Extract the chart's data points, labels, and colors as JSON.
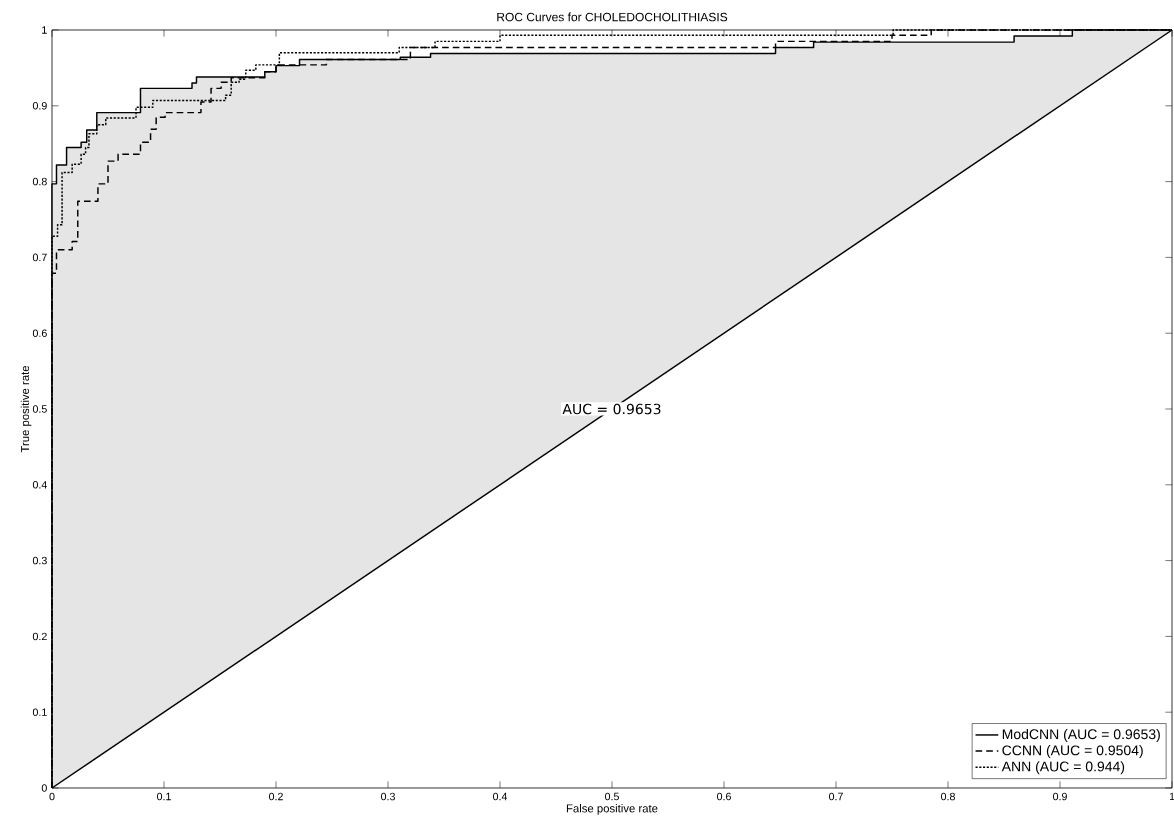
{
  "chart_data": {
    "type": "line",
    "title": "ROC Curves for CHOLEDOCHOLITHIASIS",
    "xlabel": "False positive rate",
    "ylabel": "True positive rate",
    "xlim": [
      0,
      1
    ],
    "ylim": [
      0,
      1
    ],
    "xticks": [
      0,
      0.1,
      0.2,
      0.3,
      0.4,
      0.5,
      0.6,
      0.7,
      0.8,
      0.9,
      1
    ],
    "yticks": [
      0,
      0.1,
      0.2,
      0.3,
      0.4,
      0.5,
      0.6,
      0.7,
      0.8,
      0.9,
      1
    ],
    "grid": false,
    "legend": "bottom right",
    "marker": "none",
    "annotations": [
      {
        "text": "AUC = 0.9653",
        "x": 0.5,
        "y": 0.5
      }
    ],
    "series": [
      {
        "name": "ModCNN (AUC = 0.9653)",
        "color": "#000000",
        "line_style": "solid",
        "x": [
          0,
          0,
          0.004,
          0.004,
          0.013,
          0.013,
          0.026,
          0.026,
          0.031,
          0.031,
          0.04,
          0.04,
          0.079,
          0.079,
          0.125,
          0.125,
          0.129,
          0.129,
          0.19,
          0.19,
          0.2,
          0.2,
          0.221,
          0.221,
          0.311,
          0.311,
          0.338,
          0.338,
          0.646,
          0.646,
          0.68,
          0.68,
          0.859,
          0.859,
          0.911,
          0.911,
          1
        ],
        "values": [
          0,
          0.797,
          0.797,
          0.822,
          0.822,
          0.845,
          0.845,
          0.852,
          0.852,
          0.868,
          0.868,
          0.891,
          0.891,
          0.923,
          0.923,
          0.93,
          0.93,
          0.938,
          0.938,
          0.945,
          0.945,
          0.953,
          0.953,
          0.961,
          0.961,
          0.964,
          0.964,
          0.969,
          0.969,
          0.977,
          0.977,
          0.984,
          0.984,
          0.992,
          0.992,
          1,
          1
        ],
        "lower": [
          0,
          0,
          0.004,
          0.004,
          0.013,
          0.013,
          0.026,
          0.026,
          0.031,
          0.031,
          0.04,
          0.04,
          0.079,
          0.079,
          0.125,
          0.125,
          0.129,
          0.129,
          0.19,
          0.19,
          0.2,
          0.2,
          0.221,
          0.221,
          0.311,
          0.311,
          0.338,
          0.338,
          0.646,
          0.646,
          0.68,
          0.68,
          0.859,
          0.859,
          0.911,
          0.911,
          1
        ],
        "upper": [
          0,
          0.797,
          0.797,
          0.822,
          0.822,
          0.845,
          0.845,
          0.852,
          0.852,
          0.868,
          0.868,
          0.891,
          0.891,
          0.923,
          0.923,
          0.93,
          0.93,
          0.938,
          0.938,
          0.945,
          0.945,
          0.953,
          0.953,
          0.961,
          0.961,
          0.964,
          0.964,
          0.969,
          0.969,
          0.977,
          0.977,
          0.984,
          0.984,
          0.992,
          0.992,
          1,
          1
        ]
      },
      {
        "name": "CCNN     (AUC = 0.9504)",
        "color": "#000000",
        "line_style": "dashed",
        "x": [
          0,
          0,
          0.004,
          0.004,
          0.018,
          0.018,
          0.023,
          0.023,
          0.041,
          0.041,
          0.05,
          0.05,
          0.059,
          0.059,
          0.079,
          0.079,
          0.088,
          0.088,
          0.093,
          0.093,
          0.101,
          0.101,
          0.133,
          0.133,
          0.142,
          0.142,
          0.151,
          0.151,
          0.16,
          0.16,
          0.19,
          0.19,
          0.2,
          0.2,
          0.245,
          0.245,
          0.32,
          0.32,
          0.646,
          0.646,
          0.75,
          0.75,
          0.785,
          0.785,
          1
        ],
        "values": [
          0,
          0.679,
          0.679,
          0.71,
          0.71,
          0.721,
          0.721,
          0.774,
          0.774,
          0.797,
          0.797,
          0.827,
          0.827,
          0.836,
          0.836,
          0.852,
          0.852,
          0.869,
          0.869,
          0.885,
          0.885,
          0.891,
          0.891,
          0.905,
          0.905,
          0.923,
          0.923,
          0.931,
          0.931,
          0.937,
          0.937,
          0.945,
          0.945,
          0.954,
          0.954,
          0.961,
          0.961,
          0.977,
          0.977,
          0.985,
          0.985,
          0.993,
          0.993,
          1,
          1
        ]
      },
      {
        "name": "ANN          (AUC = 0.944)",
        "color": "#000000",
        "line_style": "dotted",
        "x": [
          0,
          0,
          0.005,
          0.005,
          0.009,
          0.009,
          0.018,
          0.018,
          0.026,
          0.026,
          0.03,
          0.03,
          0.033,
          0.033,
          0.04,
          0.04,
          0.048,
          0.048,
          0.075,
          0.075,
          0.09,
          0.09,
          0.155,
          0.155,
          0.16,
          0.16,
          0.167,
          0.167,
          0.173,
          0.173,
          0.182,
          0.182,
          0.203,
          0.203,
          0.31,
          0.31,
          0.342,
          0.342,
          0.4,
          0.4,
          0.751,
          0.751,
          1
        ],
        "values": [
          0,
          0.728,
          0.728,
          0.743,
          0.743,
          0.812,
          0.812,
          0.823,
          0.823,
          0.836,
          0.836,
          0.845,
          0.845,
          0.863,
          0.863,
          0.875,
          0.875,
          0.884,
          0.884,
          0.898,
          0.898,
          0.907,
          0.907,
          0.914,
          0.914,
          0.931,
          0.931,
          0.935,
          0.935,
          0.947,
          0.947,
          0.954,
          0.954,
          0.97,
          0.97,
          0.977,
          0.977,
          0.985,
          0.985,
          0.993,
          0.993,
          1,
          1
        ]
      },
      {
        "color": "#000000",
        "line_style": "solid",
        "x": [
          0,
          1
        ],
        "values": [
          0,
          1
        ]
      }
    ]
  }
}
